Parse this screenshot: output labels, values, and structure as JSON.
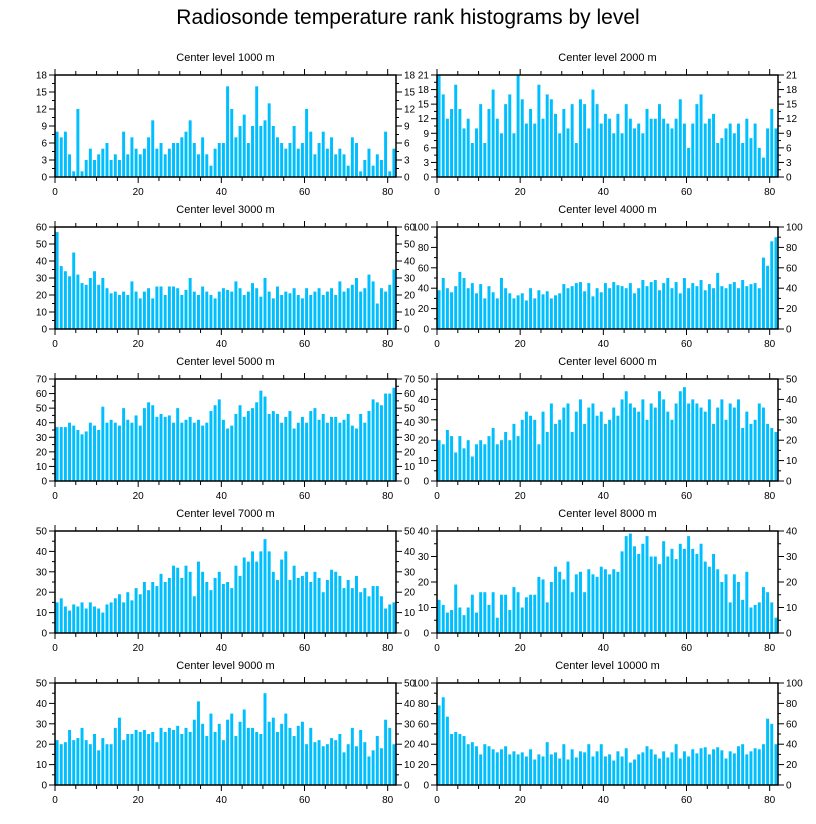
{
  "title": "Radiosonde temperature rank histograms by level",
  "bar_color": "#00bfff",
  "chart_data": [
    {
      "type": "bar",
      "title": "Center level 1000 m",
      "xlim": [
        0,
        82
      ],
      "ylim": [
        0,
        18
      ],
      "xticks": [
        0,
        20,
        40,
        60,
        80
      ],
      "yticks": [
        0,
        3,
        6,
        9,
        12,
        15,
        18
      ],
      "yticks_right": [
        0,
        3,
        6,
        9,
        12,
        15,
        18
      ],
      "values": [
        8,
        7,
        8,
        4,
        1,
        12,
        1,
        3,
        5,
        3,
        4,
        5,
        6,
        3,
        4,
        3,
        8,
        4,
        7,
        5,
        4,
        5,
        7,
        10,
        5,
        6,
        4,
        5,
        6,
        6,
        7,
        8,
        10,
        6,
        4,
        7,
        4,
        2,
        5,
        6,
        6,
        16,
        12,
        7,
        9,
        11,
        6,
        9,
        16,
        9,
        10,
        13,
        9,
        7,
        6,
        5,
        6,
        9,
        5,
        6,
        12,
        8,
        4,
        6,
        8,
        5,
        7,
        4,
        5,
        4,
        2,
        7,
        6,
        1,
        3,
        5,
        2,
        4,
        3,
        8,
        1,
        5
      ]
    },
    {
      "type": "bar",
      "title": "Center level 2000 m",
      "xlim": [
        0,
        82
      ],
      "ylim": [
        0,
        21
      ],
      "xticks": [
        0,
        20,
        40,
        60,
        80
      ],
      "yticks": [
        0,
        3,
        6,
        9,
        12,
        15,
        18,
        21
      ],
      "yticks_right": [
        0,
        3,
        6,
        9,
        12,
        15,
        18,
        21
      ],
      "values": [
        21,
        17,
        12,
        14,
        19,
        14,
        10,
        12,
        7,
        10,
        15,
        7,
        14,
        18,
        12,
        9,
        15,
        17,
        9,
        21,
        16,
        11,
        14,
        11,
        19,
        12,
        17,
        16,
        13,
        9,
        14,
        10,
        15,
        7,
        16,
        15,
        10,
        18,
        15,
        11,
        13,
        12,
        9,
        13,
        9,
        15,
        12,
        10,
        11,
        9,
        14,
        12,
        12,
        15,
        12,
        11,
        10,
        12,
        16,
        11,
        6,
        11,
        15,
        17,
        11,
        12,
        13,
        7,
        8,
        10,
        11,
        9,
        11,
        7,
        12,
        8,
        11,
        6,
        4,
        10,
        14,
        10
      ]
    },
    {
      "type": "bar",
      "title": "Center level 3000 m",
      "xlim": [
        0,
        82
      ],
      "ylim": [
        0,
        60
      ],
      "xticks": [
        0,
        20,
        40,
        60,
        80
      ],
      "yticks": [
        0,
        10,
        20,
        30,
        40,
        50,
        60
      ],
      "yticks_right": [
        0,
        10,
        20,
        30,
        40,
        50,
        60
      ],
      "values": [
        57,
        37,
        34,
        31,
        45,
        32,
        27,
        26,
        30,
        34,
        26,
        30,
        24,
        21,
        22,
        20,
        22,
        20,
        28,
        22,
        18,
        22,
        24,
        18,
        25,
        25,
        20,
        25,
        25,
        24,
        20,
        23,
        30,
        22,
        20,
        25,
        22,
        20,
        18,
        22,
        24,
        23,
        22,
        28,
        24,
        20,
        22,
        27,
        24,
        19,
        30,
        22,
        18,
        25,
        20,
        22,
        21,
        24,
        20,
        18,
        24,
        20,
        22,
        24,
        20,
        22,
        24,
        20,
        28,
        22,
        24,
        26,
        30,
        22,
        24,
        32,
        28,
        15,
        24,
        22,
        26,
        35
      ]
    },
    {
      "type": "bar",
      "title": "Center level 4000 m",
      "xlim": [
        0,
        82
      ],
      "ylim": [
        0,
        100
      ],
      "xticks": [
        0,
        20,
        40,
        60,
        80
      ],
      "yticks": [
        0,
        20,
        40,
        60,
        80,
        100
      ],
      "yticks_right": [
        0,
        20,
        40,
        60,
        80,
        100
      ],
      "values": [
        38,
        50,
        40,
        36,
        42,
        56,
        50,
        40,
        45,
        35,
        44,
        30,
        42,
        36,
        30,
        50,
        40,
        35,
        30,
        33,
        35,
        28,
        40,
        30,
        38,
        34,
        37,
        30,
        33,
        35,
        44,
        40,
        42,
        45,
        46,
        37,
        45,
        32,
        40,
        36,
        45,
        40,
        46,
        43,
        42,
        40,
        45,
        35,
        40,
        48,
        42,
        46,
        48,
        38,
        45,
        50,
        40,
        46,
        35,
        50,
        40,
        45,
        42,
        48,
        38,
        44,
        40,
        55,
        42,
        40,
        44,
        46,
        40,
        48,
        42,
        44,
        45,
        40,
        70,
        62,
        86,
        90
      ]
    },
    {
      "type": "bar",
      "title": "Center level 5000 m",
      "xlim": [
        0,
        82
      ],
      "ylim": [
        0,
        70
      ],
      "xticks": [
        0,
        20,
        40,
        60,
        80
      ],
      "yticks": [
        0,
        10,
        20,
        30,
        40,
        50,
        60,
        70
      ],
      "yticks_right": [
        0,
        10,
        20,
        30,
        40,
        50,
        60,
        70
      ],
      "values": [
        37,
        37,
        37,
        40,
        38,
        35,
        32,
        34,
        40,
        38,
        35,
        51,
        40,
        42,
        40,
        38,
        50,
        42,
        40,
        45,
        38,
        50,
        54,
        52,
        44,
        46,
        44,
        45,
        40,
        50,
        40,
        42,
        44,
        40,
        42,
        38,
        40,
        48,
        52,
        56,
        42,
        36,
        38,
        46,
        52,
        44,
        48,
        50,
        54,
        62,
        58,
        46,
        48,
        46,
        40,
        44,
        48,
        36,
        40,
        44,
        40,
        48,
        50,
        42,
        46,
        40,
        44,
        44,
        40,
        42,
        46,
        38,
        36,
        46,
        40,
        48,
        56,
        54,
        52,
        60,
        60,
        64
      ]
    },
    {
      "type": "bar",
      "title": "Center level 6000 m",
      "xlim": [
        0,
        82
      ],
      "ylim": [
        0,
        50
      ],
      "xticks": [
        0,
        20,
        40,
        60,
        80
      ],
      "yticks": [
        0,
        10,
        20,
        30,
        40,
        50
      ],
      "yticks_right": [
        0,
        10,
        20,
        30,
        40,
        50
      ],
      "values": [
        20,
        18,
        25,
        22,
        14,
        22,
        16,
        20,
        12,
        18,
        20,
        18,
        22,
        26,
        18,
        20,
        24,
        20,
        28,
        22,
        30,
        34,
        32,
        30,
        18,
        34,
        24,
        38,
        28,
        30,
        36,
        38,
        24,
        34,
        40,
        28,
        36,
        38,
        32,
        34,
        28,
        30,
        36,
        32,
        40,
        44,
        38,
        36,
        34,
        40,
        30,
        38,
        36,
        44,
        40,
        34,
        30,
        38,
        44,
        46,
        38,
        40,
        38,
        36,
        34,
        40,
        28,
        36,
        40,
        30,
        38,
        36,
        40,
        26,
        34,
        28,
        30,
        38,
        36,
        28,
        26,
        24
      ]
    },
    {
      "type": "bar",
      "title": "Center level 7000 m",
      "xlim": [
        0,
        82
      ],
      "ylim": [
        0,
        50
      ],
      "xticks": [
        0,
        20,
        40,
        60,
        80
      ],
      "yticks": [
        0,
        10,
        20,
        30,
        40,
        50
      ],
      "yticks_right": [
        0,
        10,
        20,
        30,
        40,
        50
      ],
      "values": [
        15,
        17,
        13,
        11,
        14,
        13,
        15,
        12,
        15,
        13,
        12,
        10,
        14,
        15,
        17,
        19,
        15,
        20,
        16,
        22,
        19,
        25,
        21,
        25,
        23,
        29,
        25,
        27,
        33,
        32,
        27,
        33,
        30,
        18,
        35,
        30,
        25,
        21,
        27,
        30,
        24,
        25,
        22,
        33,
        28,
        37,
        35,
        40,
        35,
        40,
        46,
        40,
        30,
        26,
        36,
        40,
        26,
        33,
        27,
        28,
        30,
        25,
        30,
        27,
        20,
        26,
        31,
        30,
        28,
        22,
        26,
        22,
        28,
        20,
        22,
        18,
        23,
        23,
        18,
        12,
        14,
        15
      ]
    },
    {
      "type": "bar",
      "title": "Center level 8000 m",
      "xlim": [
        0,
        82
      ],
      "ylim": [
        0,
        40
      ],
      "xticks": [
        0,
        20,
        40,
        60,
        80
      ],
      "yticks": [
        0,
        10,
        20,
        30,
        40
      ],
      "yticks_right": [
        0,
        10,
        20,
        30,
        40
      ],
      "values": [
        13,
        11,
        8,
        9,
        19,
        10,
        7,
        10,
        15,
        8,
        16,
        16,
        11,
        16,
        6,
        15,
        15,
        9,
        18,
        16,
        10,
        14,
        15,
        15,
        22,
        21,
        12,
        20,
        26,
        24,
        21,
        28,
        16,
        23,
        24,
        16,
        25,
        23,
        22,
        26,
        25,
        23,
        25,
        24,
        32,
        38,
        39,
        34,
        31,
        35,
        38,
        30,
        30,
        27,
        36,
        30,
        33,
        29,
        35,
        33,
        38,
        33,
        31,
        35,
        28,
        26,
        31,
        25,
        20,
        23,
        12,
        23,
        20,
        13,
        24,
        10,
        11,
        12,
        18,
        16,
        12,
        6
      ]
    },
    {
      "type": "bar",
      "title": "Center level 9000 m",
      "xlim": [
        0,
        82
      ],
      "ylim": [
        0,
        50
      ],
      "xticks": [
        0,
        20,
        40,
        60,
        80
      ],
      "yticks": [
        0,
        10,
        20,
        30,
        40,
        50
      ],
      "yticks_right": [
        0,
        10,
        20,
        30,
        40,
        50
      ],
      "values": [
        22,
        20,
        21,
        27,
        22,
        23,
        28,
        22,
        20,
        25,
        17,
        23,
        20,
        20,
        28,
        33,
        22,
        25,
        25,
        27,
        26,
        27,
        25,
        26,
        21,
        28,
        26,
        28,
        27,
        29,
        25,
        28,
        26,
        32,
        41,
        30,
        24,
        35,
        26,
        30,
        22,
        32,
        35,
        24,
        31,
        37,
        28,
        28,
        26,
        25,
        45,
        31,
        33,
        26,
        30,
        35,
        28,
        24,
        29,
        31,
        20,
        28,
        21,
        22,
        19,
        20,
        23,
        22,
        25,
        16,
        20,
        28,
        19,
        27,
        21,
        14,
        17,
        24,
        18,
        32,
        28,
        20
      ]
    },
    {
      "type": "bar",
      "title": "Center level 10000 m",
      "xlim": [
        0,
        82
      ],
      "ylim": [
        0,
        100
      ],
      "xticks": [
        0,
        20,
        40,
        60,
        80
      ],
      "yticks": [
        0,
        20,
        40,
        60,
        80,
        100
      ],
      "yticks_right": [
        0,
        20,
        40,
        60,
        80,
        100
      ],
      "values": [
        78,
        86,
        67,
        50,
        52,
        50,
        48,
        40,
        42,
        38,
        30,
        40,
        38,
        35,
        32,
        35,
        38,
        30,
        33,
        30,
        32,
        28,
        35,
        25,
        30,
        28,
        42,
        30,
        32,
        26,
        40,
        25,
        35,
        27,
        33,
        32,
        40,
        28,
        33,
        40,
        28,
        30,
        24,
        33,
        28,
        36,
        22,
        25,
        30,
        32,
        38,
        35,
        30,
        26,
        33,
        27,
        32,
        40,
        26,
        33,
        28,
        35,
        31,
        36,
        37,
        30,
        35,
        37,
        34,
        26,
        33,
        31,
        38,
        40,
        30,
        33,
        36,
        35,
        40,
        65,
        60,
        40
      ]
    }
  ]
}
